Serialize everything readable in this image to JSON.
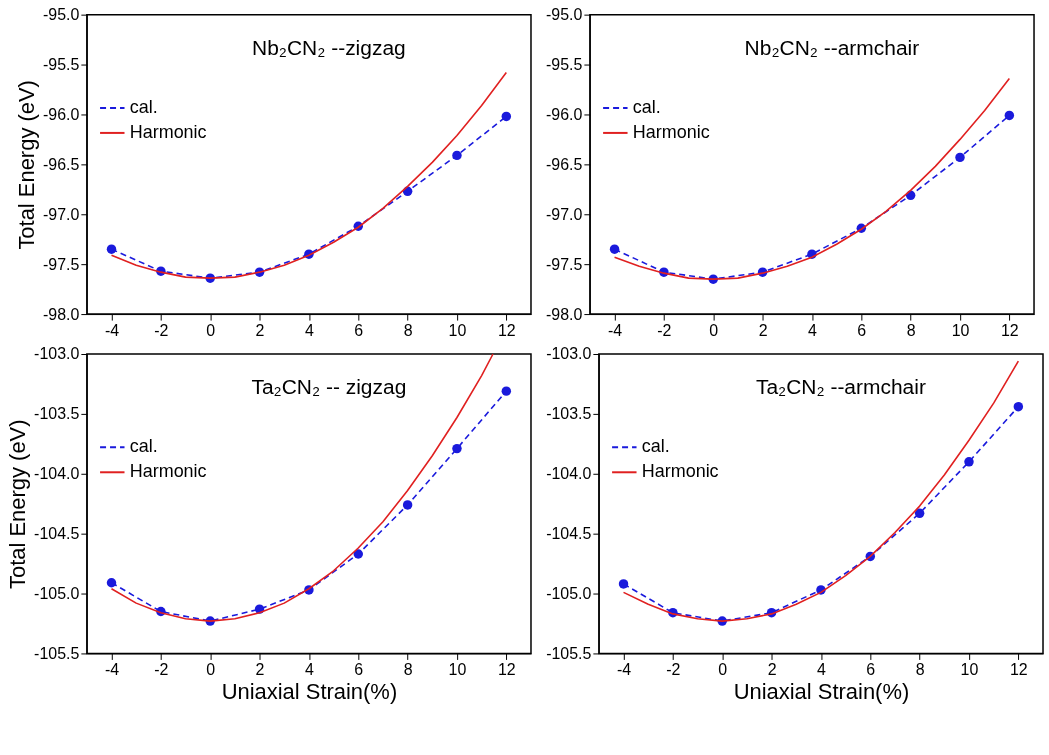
{
  "chart_data": [
    {
      "type": "line",
      "title": "Nb₂CN₂ --zigzag",
      "ylabel": "Total Energy (eV)",
      "legend": "top left",
      "grid": false,
      "xlim": [
        -5,
        13
      ],
      "xticks": [
        -4,
        -2,
        0,
        2,
        4,
        6,
        8,
        10,
        12
      ],
      "ylim": [
        -98,
        -95
      ],
      "yticks": [
        {
          "value": -98,
          "label": "-98.0"
        },
        {
          "value": -97.5,
          "label": "-97.5"
        },
        {
          "value": -97,
          "label": "-97.0"
        },
        {
          "value": -96.5,
          "label": "-96.5"
        },
        {
          "value": -96,
          "label": "-96.0"
        },
        {
          "value": -95.5,
          "label": "-95.5"
        },
        {
          "value": -95,
          "label": "-95.0"
        }
      ],
      "x": [
        -4,
        -2,
        0,
        2,
        4,
        6,
        8,
        10,
        12
      ],
      "series": [
        {
          "name": "cal.",
          "color": "#1a1adc",
          "marker": "circle",
          "line_style": "dashed",
          "values": [
            -97.35,
            -97.57,
            -97.64,
            -97.58,
            -97.4,
            -97.12,
            -96.77,
            -96.41,
            -96.02
          ]
        },
        {
          "name": "Harmonic",
          "color": "#e02020",
          "marker": "none",
          "line_style": "solid",
          "x": [
            -4,
            -3,
            -2,
            -1,
            0,
            1,
            2,
            3,
            4,
            5,
            6,
            7,
            8,
            9,
            10,
            11,
            12
          ],
          "values": [
            -97.41,
            -97.51,
            -97.58,
            -97.63,
            -97.64,
            -97.63,
            -97.58,
            -97.51,
            -97.41,
            -97.28,
            -97.13,
            -96.94,
            -96.72,
            -96.48,
            -96.21,
            -95.91,
            -95.58
          ]
        }
      ]
    },
    {
      "type": "line",
      "title": "Nb₂CN₂ --armchair",
      "legend": "top left",
      "grid": false,
      "xlim": [
        -5,
        13
      ],
      "xticks": [
        -4,
        -2,
        0,
        2,
        4,
        6,
        8,
        10,
        12
      ],
      "ylim": [
        -98,
        -95
      ],
      "yticks": [
        {
          "value": -98,
          "label": "-98.0"
        },
        {
          "value": -97.5,
          "label": "-97.5"
        },
        {
          "value": -97,
          "label": "-97.0"
        },
        {
          "value": -96.5,
          "label": "-96.5"
        },
        {
          "value": -96,
          "label": "-96.0"
        },
        {
          "value": -95.5,
          "label": "-95.5"
        },
        {
          "value": -95,
          "label": "-95.0"
        }
      ],
      "x": [
        -4,
        -2,
        0,
        2,
        4,
        6,
        8,
        10,
        12
      ],
      "series": [
        {
          "name": "cal.",
          "color": "#1a1adc",
          "marker": "circle",
          "line_style": "dashed",
          "values": [
            -97.35,
            -97.58,
            -97.65,
            -97.58,
            -97.4,
            -97.14,
            -96.81,
            -96.43,
            -96.01
          ]
        },
        {
          "name": "Harmonic",
          "color": "#e02020",
          "marker": "none",
          "line_style": "solid",
          "x": [
            -4,
            -3,
            -2,
            -1,
            0,
            1,
            2,
            3,
            4,
            5,
            6,
            7,
            8,
            9,
            10,
            11,
            12
          ],
          "values": [
            -97.43,
            -97.52,
            -97.59,
            -97.64,
            -97.65,
            -97.64,
            -97.59,
            -97.52,
            -97.43,
            -97.3,
            -97.15,
            -96.97,
            -96.76,
            -96.52,
            -96.25,
            -95.96,
            -95.64
          ]
        }
      ]
    },
    {
      "type": "line",
      "title": "Ta₂CN₂ -- zigzag",
      "xlabel": "Uniaxial Strain(%)",
      "ylabel": "Total Energy (eV)",
      "legend": "top left",
      "grid": false,
      "xlim": [
        -5,
        13
      ],
      "xticks": [
        -4,
        -2,
        0,
        2,
        4,
        6,
        8,
        10,
        12
      ],
      "ylim": [
        -105.5,
        -103
      ],
      "yticks": [
        {
          "value": -105.5,
          "label": "-105.5"
        },
        {
          "value": -105,
          "label": "-105.0"
        },
        {
          "value": -104.5,
          "label": "-104.5"
        },
        {
          "value": -104,
          "label": "-104.0"
        },
        {
          "value": -103.5,
          "label": "-103.5"
        },
        {
          "value": -103,
          "label": "-103.0"
        }
      ],
      "x": [
        -4,
        -2,
        0,
        2,
        4,
        6,
        8,
        10,
        12
      ],
      "series": [
        {
          "name": "cal.",
          "color": "#1a1adc",
          "marker": "circle",
          "line_style": "dashed",
          "values": [
            -104.91,
            -105.15,
            -105.23,
            -105.13,
            -104.97,
            -104.67,
            -104.26,
            -103.79,
            -103.31
          ]
        },
        {
          "name": "Harmonic",
          "color": "#e02020",
          "marker": "none",
          "line_style": "solid",
          "x": [
            -4,
            -3,
            -2,
            -1,
            0,
            1,
            2,
            3,
            4,
            5,
            6,
            7,
            8,
            9,
            10,
            11,
            11.46
          ],
          "values": [
            -104.96,
            -105.08,
            -105.16,
            -105.21,
            -105.23,
            -105.21,
            -105.16,
            -105.08,
            -104.96,
            -104.81,
            -104.62,
            -104.4,
            -104.14,
            -103.85,
            -103.53,
            -103.18,
            -103.0
          ]
        }
      ]
    },
    {
      "type": "line",
      "title": "Ta₂CN₂ --armchair",
      "xlabel": "Uniaxial Strain(%)",
      "legend": "top left",
      "grid": false,
      "xlim": [
        -5,
        13
      ],
      "xticks": [
        -4,
        -2,
        0,
        2,
        4,
        6,
        8,
        10,
        12
      ],
      "ylim": [
        -105.5,
        -103
      ],
      "yticks": [
        {
          "value": -105.5,
          "label": "-105.5"
        },
        {
          "value": -105,
          "label": "-105.0"
        },
        {
          "value": -104.5,
          "label": "-104.5"
        },
        {
          "value": -104,
          "label": "-104.0"
        },
        {
          "value": -103.5,
          "label": "-103.5"
        },
        {
          "value": -103,
          "label": "-103.0"
        }
      ],
      "x": [
        -4,
        -2,
        0,
        2,
        4,
        6,
        8,
        10,
        12
      ],
      "series": [
        {
          "name": "cal.",
          "color": "#1a1adc",
          "marker": "circle",
          "line_style": "dashed",
          "values": [
            -104.92,
            -105.16,
            -105.23,
            -105.16,
            -104.97,
            -104.69,
            -104.33,
            -103.9,
            -103.44
          ]
        },
        {
          "name": "Harmonic",
          "color": "#e02020",
          "marker": "none",
          "line_style": "solid",
          "x": [
            -4,
            -3,
            -2,
            -1,
            0,
            1,
            2,
            3,
            4,
            5,
            6,
            7,
            8,
            9,
            10,
            11,
            12
          ],
          "values": [
            -104.99,
            -105.09,
            -105.17,
            -105.21,
            -105.23,
            -105.21,
            -105.17,
            -105.09,
            -104.99,
            -104.85,
            -104.69,
            -104.49,
            -104.27,
            -104.01,
            -103.72,
            -103.41,
            -103.06
          ]
        }
      ]
    }
  ]
}
